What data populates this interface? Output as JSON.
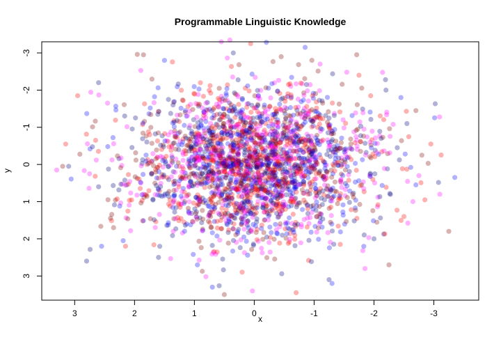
{
  "chart_data": {
    "type": "scatter",
    "title": "Programmable Linguistic Knowledge",
    "xlabel": "x",
    "ylabel": "y",
    "x_axis_reversed": true,
    "y_axis_reversed": true,
    "xlim": [
      3.55,
      -3.75
    ],
    "ylim": [
      3.65,
      -3.3
    ],
    "x_ticks": [
      {
        "value": 3,
        "label": "3"
      },
      {
        "value": 2,
        "label": "2"
      },
      {
        "value": 1,
        "label": "1"
      },
      {
        "value": 0,
        "label": "0"
      },
      {
        "value": -1,
        "label": "-1"
      },
      {
        "value": -2,
        "label": "-2"
      },
      {
        "value": -3,
        "label": "-3"
      }
    ],
    "y_ticks": [
      {
        "value": -3,
        "label": "-3"
      },
      {
        "value": -2,
        "label": "-2"
      },
      {
        "value": -1,
        "label": "-1"
      },
      {
        "value": 0,
        "label": "0"
      },
      {
        "value": 1,
        "label": "1"
      },
      {
        "value": 2,
        "label": "2"
      },
      {
        "value": 3,
        "label": "3"
      }
    ],
    "grid": false,
    "legend": "none",
    "point_colors": [
      "#ff00ff",
      "#ff0000",
      "#000080",
      "#0000ff",
      "#800000"
    ],
    "point_opacity": 0.3,
    "series": [
      {
        "points": [
          {
            "x": 0.55,
            "y": -3.3
          },
          {
            "x": 0.06,
            "y": -3.25
          },
          {
            "x": 0.35,
            "y": -3.0
          },
          {
            "x": -0.85,
            "y": -3.15
          },
          {
            "x": 1.85,
            "y": -2.95
          },
          {
            "x": 3.3,
            "y": 0.15
          },
          {
            "x": 3.15,
            "y": -0.55
          },
          {
            "x": 3.1,
            "y": 0.05
          },
          {
            "x": -3.35,
            "y": 0.35
          },
          {
            "x": -3.25,
            "y": 1.8
          },
          {
            "x": -3.1,
            "y": 0.8
          },
          {
            "x": -2.95,
            "y": -0.55
          },
          {
            "x": 2.8,
            "y": 2.6
          },
          {
            "x": 0.7,
            "y": 3.3
          },
          {
            "x": 0.5,
            "y": 3.5
          },
          {
            "x": 0.03,
            "y": 3.4
          },
          {
            "x": -0.7,
            "y": 3.45
          },
          {
            "x": -1.25,
            "y": 3.1
          },
          {
            "x": -1.3,
            "y": 3.2
          },
          {
            "x": -2.25,
            "y": 2.7
          },
          {
            "x": -1.85,
            "y": 2.8
          },
          {
            "x": 2.95,
            "y": -1.85
          },
          {
            "x": 2.6,
            "y": -2.2
          },
          {
            "x": 1.5,
            "y": -2.8
          },
          {
            "x": -0.45,
            "y": -2.9
          },
          {
            "x": -1.1,
            "y": -2.7
          },
          {
            "x": -1.75,
            "y": -2.4
          },
          {
            "x": -2.2,
            "y": -2.0
          },
          {
            "x": -2.45,
            "y": -1.8
          },
          {
            "x": -2.7,
            "y": -1.45
          },
          {
            "x": -2.65,
            "y": 1.0
          },
          {
            "x": -2.5,
            "y": 1.4
          },
          {
            "x": -2.0,
            "y": 2.0
          },
          {
            "x": 2.55,
            "y": 2.2
          },
          {
            "x": 2.35,
            "y": 1.7
          },
          {
            "x": 2.45,
            "y": -1.65
          },
          {
            "x": 2.15,
            "y": 2.2
          },
          {
            "x": 1.6,
            "y": 2.5
          },
          {
            "x": 0.95,
            "y": 2.7
          },
          {
            "x": 3.2,
            "y": 0.05
          },
          {
            "x": 2.75,
            "y": 0.25
          },
          {
            "x": 2.65,
            "y": -0.65
          },
          {
            "x": 2.6,
            "y": 0.6
          },
          {
            "x": -2.7,
            "y": 0.55
          },
          {
            "x": -2.8,
            "y": -0.25
          },
          {
            "x": -2.75,
            "y": 0.3
          },
          {
            "x": -2.85,
            "y": 0.95
          },
          {
            "x": -2.55,
            "y": -1.1
          }
        ]
      }
    ],
    "cloud": {
      "count": 2600,
      "distribution": "bivariate-normal",
      "center_x": 0.0,
      "center_y": 0.0,
      "sd_x": 1.0,
      "sd_y": 1.0,
      "x_range": [
        -3.4,
        3.4
      ],
      "y_range": [
        -3.4,
        3.6
      ]
    }
  }
}
